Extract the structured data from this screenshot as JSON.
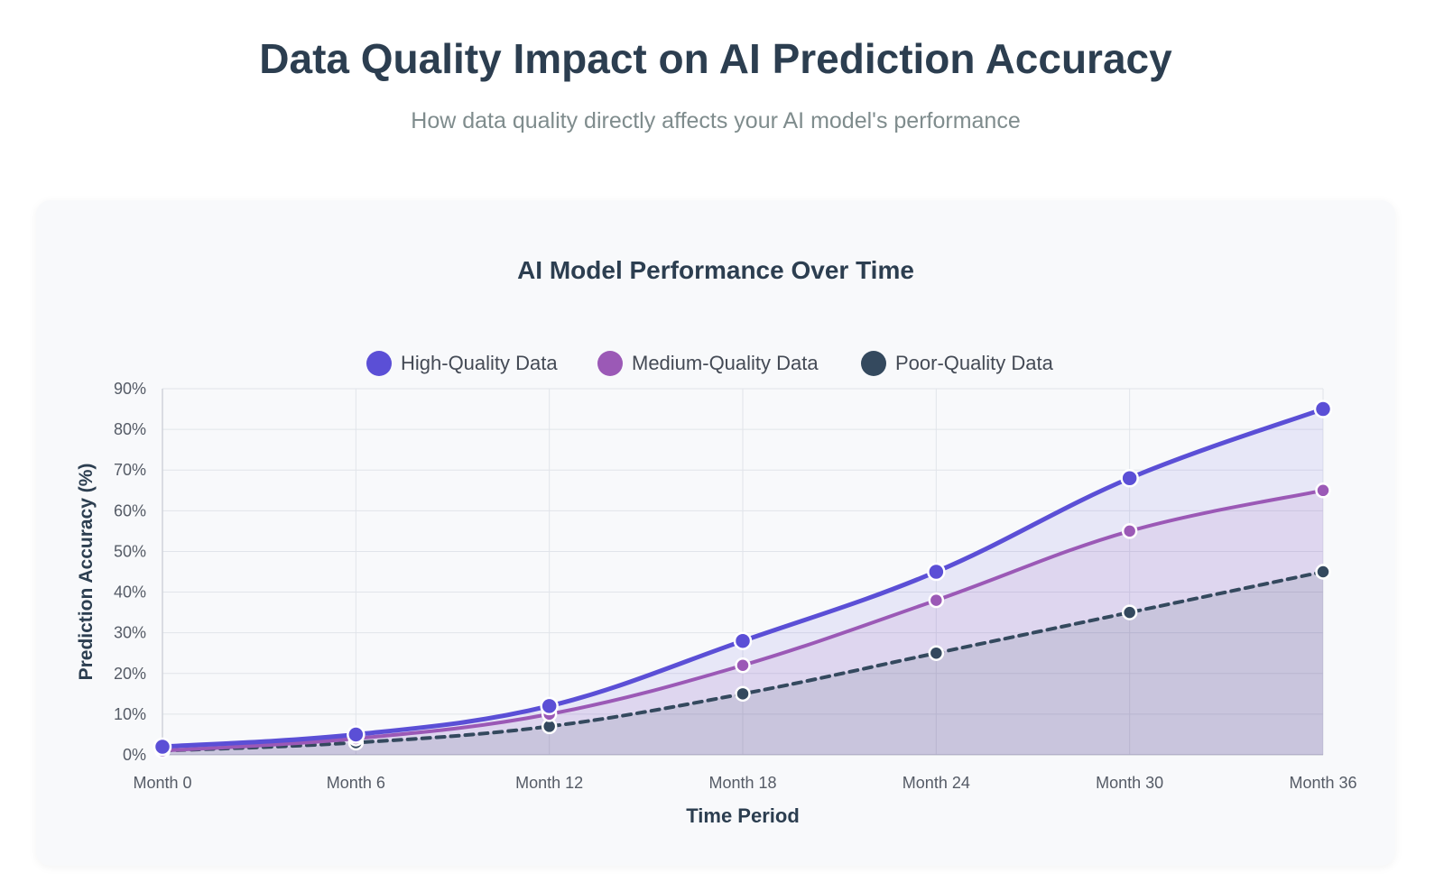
{
  "header": {
    "title": "Data Quality Impact on AI Prediction Accuracy",
    "subtitle": "How data quality directly affects your AI model's performance"
  },
  "chart_data": {
    "type": "line",
    "title": "AI Model Performance Over Time",
    "xlabel": "Time Period",
    "ylabel": "Prediction Accuracy (%)",
    "categories": [
      "Month 0",
      "Month 6",
      "Month 12",
      "Month 18",
      "Month 24",
      "Month 30",
      "Month 36"
    ],
    "ylim": [
      0,
      90
    ],
    "ytick_step": 10,
    "ytick_suffix": "%",
    "grid": true,
    "legend": "top",
    "series": [
      {
        "name": "High-Quality Data",
        "values": [
          2,
          5,
          12,
          28,
          45,
          68,
          85
        ],
        "color": "#5b4fd6",
        "fill": "rgba(91,79,214,0.10)",
        "dashed": false
      },
      {
        "name": "Medium-Quality Data",
        "values": [
          1,
          4,
          10,
          22,
          38,
          55,
          65
        ],
        "color": "#9b59b6",
        "fill": "rgba(155,89,182,0.12)",
        "dashed": false
      },
      {
        "name": "Poor-Quality Data",
        "values": [
          1,
          3,
          7,
          15,
          25,
          35,
          45
        ],
        "color": "#34495e",
        "fill": "rgba(52,73,94,0.12)",
        "dashed": true
      }
    ]
  }
}
